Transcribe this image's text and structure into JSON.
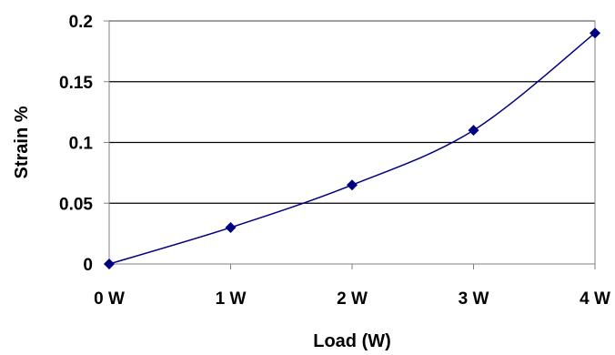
{
  "chart_data": {
    "type": "line",
    "title": "",
    "xlabel": "Load (W)",
    "ylabel": "Strain %",
    "x_tick_labels": [
      "0 W",
      "1 W",
      "2 W",
      "3 W",
      "4 W"
    ],
    "y_tick_labels": [
      "0",
      "0.05",
      "0.1",
      "0.15",
      "0.2"
    ],
    "xlim": [
      0,
      4
    ],
    "ylim": [
      0,
      0.2
    ],
    "grid": "horizontal",
    "legend": "none",
    "series": [
      {
        "x": [
          0,
          1,
          2,
          3,
          4
        ],
        "values": [
          0,
          0.03,
          0.065,
          0.11,
          0.19
        ],
        "color": "#000080",
        "marker": "diamond"
      }
    ]
  }
}
